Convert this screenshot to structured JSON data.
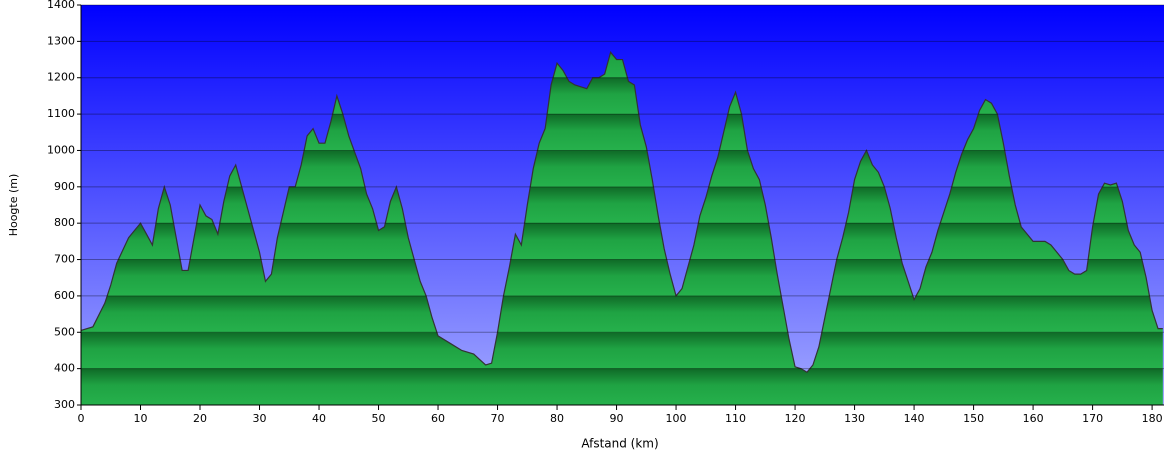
{
  "chart_data": {
    "type": "area",
    "x_label": "Afstand (km)",
    "y_label": "Hoogte (m)",
    "x": [
      0,
      2,
      4,
      5,
      6,
      8,
      10,
      11,
      12,
      13,
      14,
      15,
      16,
      17,
      18,
      19,
      20,
      21,
      22,
      23,
      24,
      25,
      26,
      27,
      28,
      30,
      31,
      32,
      33,
      35,
      36,
      37,
      38,
      39,
      40,
      41,
      42,
      43,
      44,
      45,
      47,
      48,
      49,
      50,
      51,
      52,
      53,
      54,
      55,
      56,
      57,
      58,
      59,
      60,
      62,
      64,
      66,
      67,
      68,
      69,
      70,
      71,
      72,
      73,
      74,
      75,
      76,
      77,
      78,
      79,
      80,
      81,
      82,
      83,
      84,
      85,
      86,
      87,
      88,
      89,
      90,
      91,
      92,
      93,
      94,
      95,
      96,
      97,
      98,
      99,
      100,
      101,
      102,
      103,
      104,
      105,
      106,
      107,
      108,
      109,
      110,
      111,
      112,
      113,
      114,
      115,
      116,
      117,
      118,
      119,
      120,
      121,
      122,
      123,
      124,
      125,
      126,
      127,
      128,
      129,
      130,
      131,
      132,
      133,
      134,
      135,
      136,
      137,
      138,
      139,
      140,
      141,
      142,
      143,
      144,
      145,
      146,
      147,
      148,
      149,
      150,
      151,
      152,
      153,
      154,
      155,
      156,
      157,
      158,
      159,
      160,
      161,
      162,
      163,
      164,
      165,
      166,
      167,
      168,
      169,
      170,
      171,
      172,
      173,
      174,
      175,
      176,
      177,
      178,
      179,
      180,
      181,
      181.8
    ],
    "values": [
      505,
      515,
      580,
      630,
      690,
      760,
      800,
      770,
      740,
      840,
      900,
      850,
      760,
      670,
      670,
      760,
      850,
      820,
      810,
      770,
      860,
      930,
      960,
      900,
      840,
      720,
      640,
      660,
      760,
      900,
      900,
      960,
      1040,
      1060,
      1020,
      1020,
      1080,
      1150,
      1100,
      1040,
      950,
      880,
      840,
      780,
      790,
      860,
      900,
      840,
      760,
      700,
      640,
      600,
      540,
      490,
      470,
      450,
      440,
      425,
      410,
      415,
      500,
      600,
      680,
      770,
      740,
      850,
      950,
      1020,
      1060,
      1180,
      1240,
      1220,
      1190,
      1180,
      1175,
      1170,
      1200,
      1200,
      1210,
      1270,
      1250,
      1250,
      1190,
      1180,
      1070,
      1010,
      920,
      820,
      730,
      660,
      600,
      620,
      680,
      740,
      820,
      870,
      930,
      980,
      1050,
      1120,
      1160,
      1100,
      1000,
      950,
      920,
      850,
      760,
      660,
      570,
      480,
      405,
      400,
      390,
      410,
      460,
      540,
      620,
      700,
      760,
      830,
      920,
      970,
      1000,
      960,
      940,
      900,
      840,
      760,
      690,
      640,
      590,
      620,
      680,
      720,
      780,
      830,
      880,
      940,
      990,
      1030,
      1060,
      1110,
      1140,
      1130,
      1100,
      1020,
      930,
      850,
      790,
      770,
      750,
      750,
      750,
      740,
      720,
      700,
      670,
      660,
      660,
      670,
      790,
      880,
      910,
      905,
      910,
      860,
      780,
      740,
      720,
      650,
      560,
      510,
      510
    ],
    "xlim": [
      0,
      182
    ],
    "ylim": [
      300,
      1400
    ],
    "xticks": [
      0,
      10,
      20,
      30,
      40,
      50,
      60,
      70,
      80,
      90,
      100,
      110,
      120,
      130,
      140,
      150,
      160,
      170,
      180
    ],
    "yticks": [
      300,
      400,
      500,
      600,
      700,
      800,
      900,
      1000,
      1100,
      1200,
      1300,
      1400
    ],
    "grid": true,
    "color": "#1fa845"
  }
}
